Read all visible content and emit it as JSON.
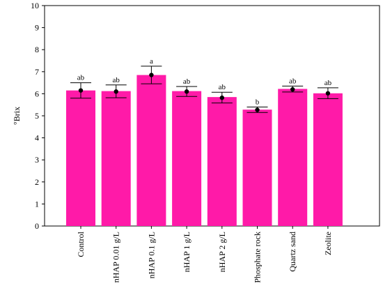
{
  "chart_data": {
    "type": "bar",
    "title": "",
    "xlabel": "",
    "ylabel": "°Brix",
    "ylim": [
      0,
      10
    ],
    "yticks": [
      0,
      1,
      2,
      3,
      4,
      5,
      6,
      7,
      8,
      9,
      10
    ],
    "grid": false,
    "legend": "none",
    "bar_color": "#ff1aa8",
    "categories": [
      "Control",
      "nHAP 0.01 g/L",
      "nHAP 0.1 g/L",
      "nHAP 1 g/L",
      "nHAP 2 g/L",
      "Phosphate rock",
      "Quartz sand",
      "Zeolite"
    ],
    "values": [
      6.15,
      6.12,
      6.85,
      6.12,
      5.85,
      5.28,
      6.22,
      6.02
    ],
    "mean_markers": [
      6.15,
      6.1,
      6.85,
      6.1,
      5.82,
      5.27,
      6.2,
      6.02
    ],
    "error_low": [
      5.8,
      5.82,
      6.45,
      5.88,
      5.58,
      5.15,
      6.08,
      5.78
    ],
    "error_high": [
      6.5,
      6.4,
      7.25,
      6.33,
      6.07,
      5.4,
      6.35,
      6.27
    ],
    "significance_labels": [
      "ab",
      "ab",
      "a",
      "ab",
      "ab",
      "b",
      "ab",
      "ab"
    ]
  }
}
